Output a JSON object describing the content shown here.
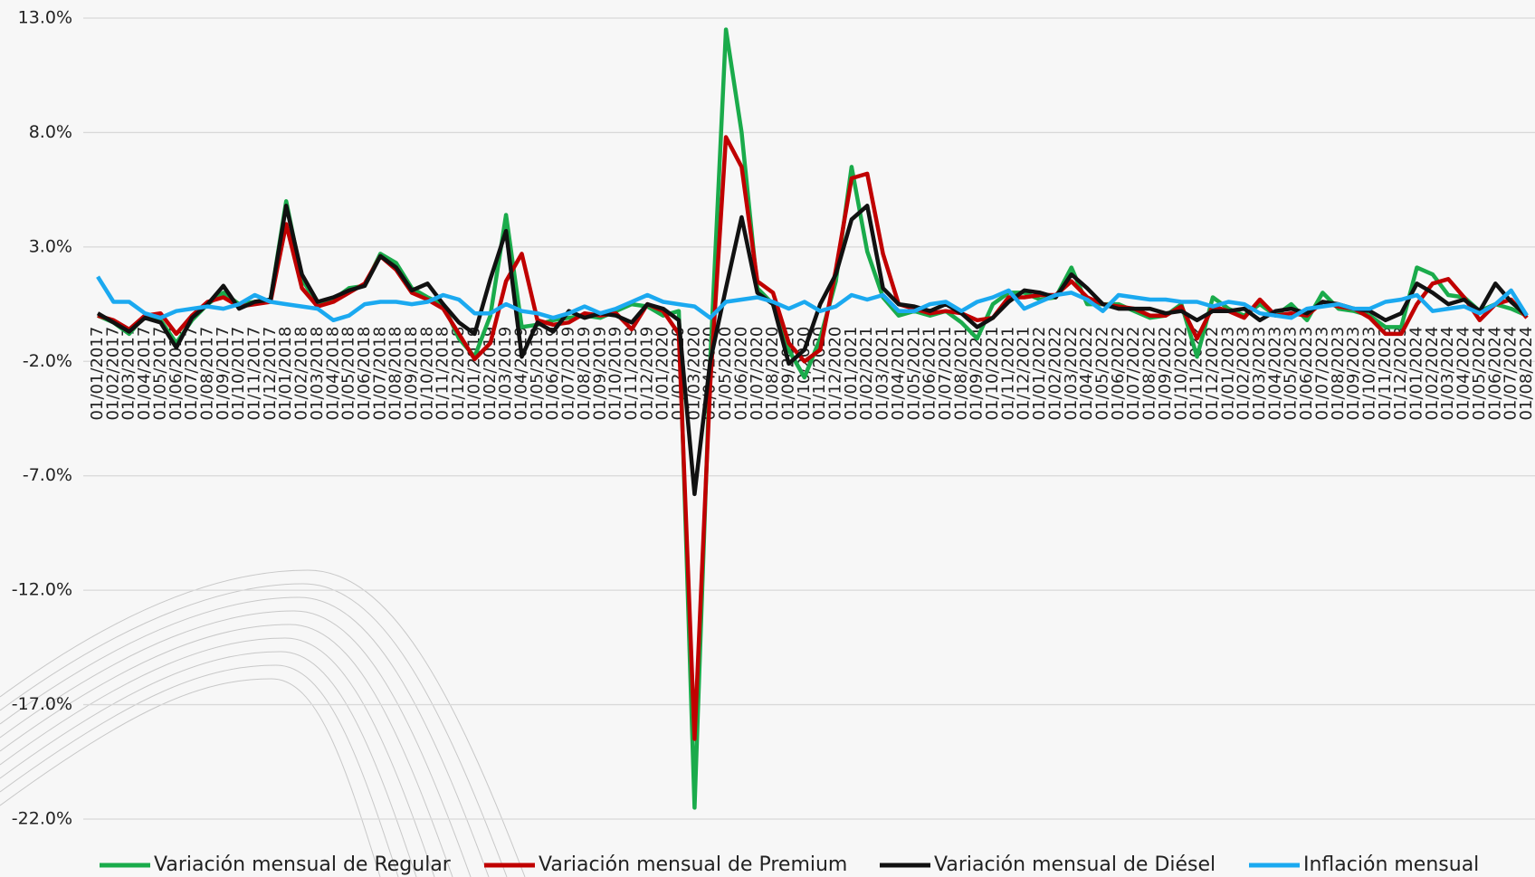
{
  "chart_data": {
    "type": "line",
    "categories": [
      "01/01/2017",
      "01/02/2017",
      "01/03/2017",
      "01/04/2017",
      "01/05/2017",
      "01/06/2017",
      "01/07/2017",
      "01/08/2017",
      "01/09/2017",
      "01/10/2017",
      "01/11/2017",
      "01/12/2017",
      "01/01/2018",
      "01/02/2018",
      "01/03/2018",
      "01/04/2018",
      "01/05/2018",
      "01/06/2018",
      "01/07/2018",
      "01/08/2018",
      "01/09/2018",
      "01/10/2018",
      "01/11/2018",
      "01/12/2018",
      "01/01/2019",
      "01/02/2019",
      "01/03/2019",
      "01/04/2019",
      "01/05/2019",
      "01/06/2019",
      "01/07/2019",
      "01/08/2019",
      "01/09/2019",
      "01/10/2019",
      "01/11/2019",
      "01/12/2019",
      "01/01/2020",
      "01/02/2020",
      "01/03/2020",
      "01/04/2020",
      "01/05/2020",
      "01/06/2020",
      "01/07/2020",
      "01/08/2020",
      "01/09/2020",
      "01/10/2020",
      "01/11/2020",
      "01/12/2020",
      "01/01/2021",
      "01/02/2021",
      "01/03/2021",
      "01/04/2021",
      "01/05/2021",
      "01/06/2021",
      "01/07/2021",
      "01/08/2021",
      "01/09/2021",
      "01/10/2021",
      "01/11/2021",
      "01/12/2021",
      "01/01/2022",
      "01/02/2022",
      "01/03/2022",
      "01/04/2022",
      "01/05/2022",
      "01/06/2022",
      "01/07/2022",
      "01/08/2022",
      "01/09/2022",
      "01/10/2022",
      "01/11/2022",
      "01/12/2022",
      "01/01/2023",
      "01/02/2023",
      "01/03/2023",
      "01/04/2023",
      "01/05/2023",
      "01/06/2023",
      "01/07/2023",
      "01/08/2023",
      "01/09/2023",
      "01/10/2023",
      "01/11/2023",
      "01/12/2023",
      "01/01/2024",
      "01/02/2024",
      "01/03/2024",
      "01/04/2024",
      "01/05/2024",
      "01/06/2024",
      "01/07/2024",
      "01/08/2024"
    ],
    "series": [
      {
        "name": "Variación mensual de Regular",
        "color": "#1aab4b",
        "values": [
          0.0,
          -0.3,
          -0.8,
          0.0,
          -0.2,
          -1.2,
          -0.2,
          0.5,
          1.0,
          0.5,
          0.6,
          0.7,
          5.0,
          1.6,
          0.5,
          0.7,
          1.2,
          1.3,
          2.7,
          2.3,
          1.2,
          0.8,
          0.5,
          -1.0,
          -1.8,
          0.0,
          4.4,
          -0.5,
          -0.4,
          -0.2,
          -0.1,
          0.0,
          -0.1,
          0.2,
          0.5,
          0.4,
          0.0,
          0.2,
          -21.5,
          -2.0,
          12.5,
          8.0,
          1.2,
          0.5,
          -1.5,
          -2.7,
          -1.0,
          1.5,
          6.5,
          2.8,
          0.8,
          0.0,
          0.2,
          0.0,
          0.2,
          -0.3,
          -1.0,
          0.5,
          1.0,
          1.0,
          0.7,
          0.8,
          2.1,
          0.5,
          0.5,
          0.5,
          0.2,
          -0.1,
          0.0,
          0.5,
          -1.8,
          0.8,
          0.3,
          0.0,
          0.5,
          0.0,
          0.5,
          -0.2,
          1.0,
          0.3,
          0.2,
          0.0,
          -0.5,
          -0.5,
          2.1,
          1.8,
          0.9,
          0.8,
          0.2,
          0.5,
          0.3,
          0.0
        ]
      },
      {
        "name": "Variación mensual de Premium",
        "color": "#c00000",
        "values": [
          0.0,
          -0.2,
          -0.6,
          0.0,
          0.1,
          -0.8,
          0.0,
          0.6,
          0.8,
          0.4,
          0.5,
          0.6,
          4.0,
          1.2,
          0.4,
          0.6,
          1.0,
          1.4,
          2.6,
          2.0,
          1.0,
          0.7,
          0.3,
          -0.8,
          -1.9,
          -1.2,
          1.5,
          2.7,
          -0.2,
          -0.4,
          -0.3,
          0.1,
          0.0,
          0.1,
          -0.6,
          0.5,
          0.2,
          -0.8,
          -18.5,
          -3.0,
          7.8,
          6.5,
          1.5,
          1.0,
          -1.2,
          -2.0,
          -1.5,
          2.0,
          6.0,
          6.2,
          2.7,
          0.5,
          0.3,
          0.1,
          0.2,
          0.1,
          -0.2,
          -0.1,
          0.8,
          0.8,
          0.9,
          0.9,
          1.5,
          0.8,
          0.5,
          0.4,
          0.3,
          0.0,
          0.0,
          0.4,
          -1.0,
          0.4,
          0.2,
          -0.1,
          0.7,
          0.0,
          0.1,
          0.0,
          0.6,
          0.4,
          0.3,
          -0.1,
          -0.8,
          -0.8,
          0.5,
          1.4,
          1.6,
          0.8,
          -0.2,
          0.5,
          0.7,
          -0.1
        ]
      },
      {
        "name": "Variación mensual de Diésel",
        "color": "#111111",
        "values": [
          0.1,
          -0.3,
          -0.7,
          -0.1,
          -0.3,
          -1.4,
          -0.1,
          0.5,
          1.3,
          0.3,
          0.6,
          0.7,
          4.8,
          1.8,
          0.6,
          0.8,
          1.1,
          1.3,
          2.6,
          2.1,
          1.1,
          1.4,
          0.5,
          -0.3,
          -0.8,
          1.6,
          3.7,
          -1.8,
          -0.3,
          -0.7,
          0.2,
          -0.1,
          0.1,
          0.0,
          -0.3,
          0.5,
          0.3,
          -0.2,
          -7.8,
          -2.0,
          1.2,
          4.3,
          1.0,
          0.5,
          -2.1,
          -1.5,
          0.5,
          1.8,
          4.2,
          4.8,
          1.2,
          0.5,
          0.4,
          0.2,
          0.5,
          0.1,
          -0.5,
          -0.1,
          0.6,
          1.1,
          1.0,
          0.8,
          1.8,
          1.2,
          0.5,
          0.3,
          0.3,
          0.3,
          0.1,
          0.2,
          -0.2,
          0.2,
          0.2,
          0.3,
          -0.2,
          0.2,
          0.3,
          0.1,
          0.6,
          0.5,
          0.3,
          0.2,
          -0.2,
          0.1,
          1.4,
          1.0,
          0.5,
          0.7,
          0.2,
          1.4,
          0.6,
          0.0
        ]
      },
      {
        "name": "Inflación mensual",
        "color": "#1ba9f0",
        "values": [
          1.7,
          0.6,
          0.6,
          0.1,
          -0.1,
          0.2,
          0.3,
          0.4,
          0.3,
          0.5,
          0.9,
          0.6,
          0.5,
          0.4,
          0.3,
          -0.2,
          0.0,
          0.5,
          0.6,
          0.6,
          0.5,
          0.6,
          0.9,
          0.7,
          0.1,
          0.1,
          0.5,
          0.2,
          0.1,
          -0.1,
          0.1,
          0.4,
          0.1,
          0.3,
          0.6,
          0.9,
          0.6,
          0.5,
          0.4,
          -0.1,
          0.6,
          0.7,
          0.8,
          0.6,
          0.3,
          0.6,
          0.2,
          0.4,
          0.9,
          0.7,
          0.9,
          0.2,
          0.2,
          0.5,
          0.6,
          0.2,
          0.6,
          0.8,
          1.1,
          0.3,
          0.6,
          0.9,
          1.0,
          0.7,
          0.2,
          0.9,
          0.8,
          0.7,
          0.7,
          0.6,
          0.6,
          0.4,
          0.6,
          0.5,
          0.1,
          0.0,
          -0.1,
          0.3,
          0.4,
          0.5,
          0.3,
          0.3,
          0.6,
          0.7,
          0.9,
          0.2,
          0.3,
          0.4,
          0.1,
          0.5,
          1.1,
          0.0
        ]
      }
    ],
    "ylim": [
      -22,
      13
    ],
    "yticks": [
      {
        "value": 13,
        "label": "13.0%"
      },
      {
        "value": 8,
        "label": "8.0%"
      },
      {
        "value": 3,
        "label": "3.0%"
      },
      {
        "value": -2,
        "label": "-2.0%"
      },
      {
        "value": -7,
        "label": "-7.0%"
      },
      {
        "value": -12,
        "label": "-12.0%"
      },
      {
        "value": -17,
        "label": "-17.0%"
      },
      {
        "value": -22,
        "label": "-22.0%"
      }
    ],
    "grid": true,
    "legend": "bottom"
  }
}
